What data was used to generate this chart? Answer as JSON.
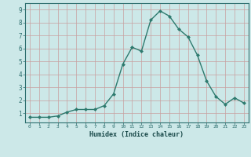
{
  "x": [
    0,
    1,
    2,
    3,
    4,
    5,
    6,
    7,
    8,
    9,
    10,
    11,
    12,
    13,
    14,
    15,
    16,
    17,
    18,
    19,
    20,
    21,
    22,
    23
  ],
  "y": [
    0.7,
    0.7,
    0.7,
    0.8,
    1.1,
    1.3,
    1.3,
    1.3,
    1.6,
    2.5,
    4.8,
    6.1,
    5.8,
    8.2,
    8.9,
    8.5,
    7.5,
    6.9,
    5.5,
    3.5,
    2.3,
    1.7,
    2.2,
    1.8
  ],
  "line_color": "#2d7a6e",
  "marker": "D",
  "marker_size": 2.0,
  "bg_color": "#cce8e8",
  "grid_color_major": "#c8a0a0",
  "grid_color_minor": "#dbbfbf",
  "axis_color": "#2d6e6e",
  "tick_color": "#2d6e6e",
  "xlabel": "Humidex (Indice chaleur)",
  "xlabel_color": "#1a4a4a",
  "ylabel_ticks": [
    1,
    2,
    3,
    4,
    5,
    6,
    7,
    8,
    9
  ],
  "xlim": [
    -0.5,
    23.5
  ],
  "ylim": [
    0.3,
    9.5
  ],
  "xtick_labels": [
    "0",
    "1",
    "2",
    "3",
    "4",
    "5",
    "6",
    "7",
    "8",
    "9",
    "10",
    "11",
    "12",
    "13",
    "14",
    "15",
    "16",
    "17",
    "18",
    "19",
    "20",
    "21",
    "22",
    "23"
  ],
  "font_family": "monospace",
  "linewidth": 1.0
}
